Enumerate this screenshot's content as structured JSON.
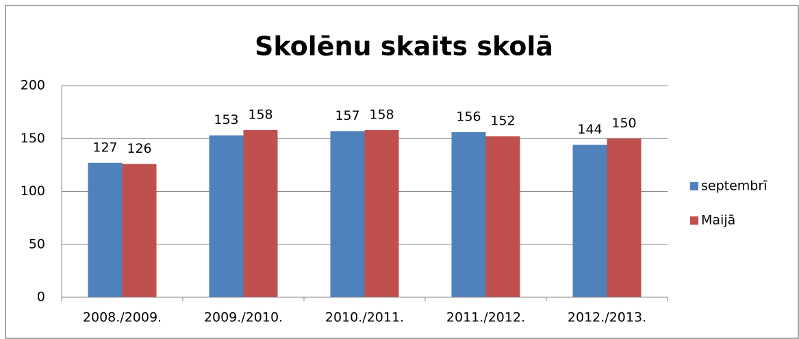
{
  "chart_data": {
    "type": "bar",
    "title": "Skolēnu skaits skolā",
    "categories": [
      "2008./2009.",
      "2009./2010.",
      "2010./2011.",
      "2011./2012.",
      "2012./2013."
    ],
    "series": [
      {
        "name": "septembrī",
        "color": "#4f81bd",
        "values": [
          127,
          153,
          157,
          156,
          144
        ]
      },
      {
        "name": "Maijā",
        "color": "#c0504d",
        "values": [
          126,
          158,
          158,
          152,
          150
        ]
      }
    ],
    "ylim": [
      0,
      200
    ],
    "yticks": [
      0,
      50,
      100,
      150,
      200
    ],
    "grid": true,
    "legend": "right"
  }
}
